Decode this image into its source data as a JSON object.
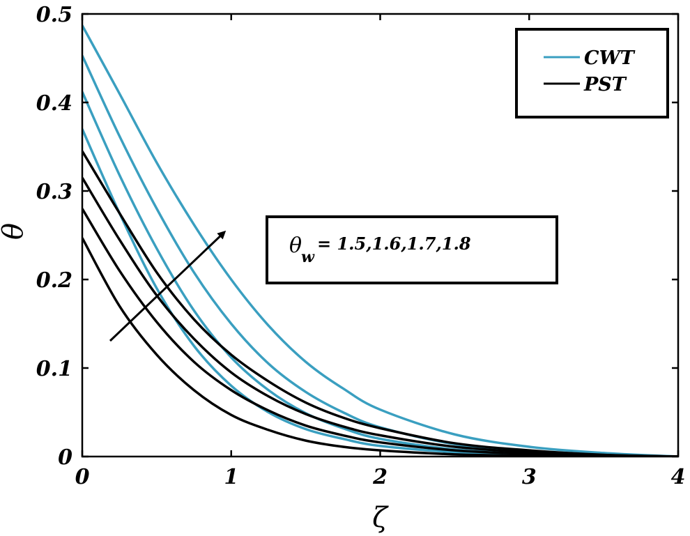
{
  "chart_data": {
    "type": "line",
    "xlabel": "ζ",
    "ylabel": "θ",
    "xlim": [
      0,
      4
    ],
    "ylim": [
      0,
      0.5
    ],
    "xticks": [
      0,
      1,
      2,
      3,
      4
    ],
    "yticks": [
      0,
      0.1,
      0.2,
      0.3,
      0.4,
      0.5
    ],
    "xtick_labels": [
      "0",
      "1",
      "2",
      "3",
      "4"
    ],
    "ytick_labels": [
      "0",
      "0.1",
      "0.2",
      "0.3",
      "0.4",
      "0.5"
    ],
    "grid": false,
    "legend_position": "top-right",
    "legend": [
      {
        "label": "CWT",
        "color": "#3a9fc0"
      },
      {
        "label": "PST",
        "color": "#000000"
      }
    ],
    "annotation": {
      "symbol": "θ",
      "subscript": "w",
      "text": "= 1.5,1.6,1.7,1.8"
    },
    "series": [
      {
        "group": "CWT",
        "color": "#3a9fc0",
        "x": [
          0,
          0.25,
          0.5,
          0.75,
          1,
          1.25,
          1.5,
          1.75,
          2,
          2.5,
          3,
          3.5,
          4
        ],
        "y": [
          0.37,
          0.275,
          0.19,
          0.125,
          0.08,
          0.05,
          0.031,
          0.02,
          0.012,
          0.005,
          0.002,
          0.0005,
          0
        ]
      },
      {
        "group": "CWT",
        "color": "#3a9fc0",
        "x": [
          0,
          0.25,
          0.5,
          0.75,
          1,
          1.25,
          1.5,
          1.75,
          2,
          2.5,
          3,
          3.5,
          4
        ],
        "y": [
          0.412,
          0.318,
          0.235,
          0.165,
          0.112,
          0.075,
          0.049,
          0.032,
          0.02,
          0.008,
          0.0035,
          0.001,
          0
        ]
      },
      {
        "group": "CWT",
        "color": "#3a9fc0",
        "x": [
          0,
          0.25,
          0.5,
          0.75,
          1,
          1.25,
          1.5,
          1.75,
          2,
          2.5,
          3,
          3.5,
          4
        ],
        "y": [
          0.453,
          0.362,
          0.28,
          0.208,
          0.15,
          0.105,
          0.073,
          0.05,
          0.033,
          0.014,
          0.006,
          0.002,
          0
        ]
      },
      {
        "group": "CWT",
        "color": "#3a9fc0",
        "x": [
          0,
          0.25,
          0.5,
          0.75,
          1,
          1.25,
          1.5,
          1.75,
          2,
          2.5,
          3,
          3.5,
          4
        ],
        "y": [
          0.487,
          0.41,
          0.332,
          0.262,
          0.2,
          0.148,
          0.107,
          0.077,
          0.053,
          0.025,
          0.011,
          0.004,
          0
        ]
      },
      {
        "group": "PST",
        "color": "#000000",
        "x": [
          0,
          0.25,
          0.5,
          0.75,
          1,
          1.25,
          1.5,
          1.75,
          2,
          2.5,
          3,
          3.5,
          4
        ],
        "y": [
          0.247,
          0.17,
          0.115,
          0.075,
          0.047,
          0.03,
          0.018,
          0.011,
          0.007,
          0.0025,
          0.001,
          0.0003,
          0
        ]
      },
      {
        "group": "PST",
        "color": "#000000",
        "x": [
          0,
          0.25,
          0.5,
          0.75,
          1,
          1.25,
          1.5,
          1.75,
          2,
          2.5,
          3,
          3.5,
          4
        ],
        "y": [
          0.28,
          0.21,
          0.152,
          0.107,
          0.075,
          0.052,
          0.035,
          0.024,
          0.016,
          0.007,
          0.003,
          0.001,
          0
        ]
      },
      {
        "group": "PST",
        "color": "#000000",
        "x": [
          0,
          0.25,
          0.5,
          0.75,
          1,
          1.25,
          1.5,
          1.75,
          2,
          2.5,
          3,
          3.5,
          4
        ],
        "y": [
          0.315,
          0.245,
          0.182,
          0.133,
          0.095,
          0.068,
          0.048,
          0.034,
          0.024,
          0.011,
          0.005,
          0.0015,
          0
        ]
      },
      {
        "group": "PST",
        "color": "#000000",
        "x": [
          0,
          0.25,
          0.5,
          0.75,
          1,
          1.25,
          1.5,
          1.75,
          2,
          2.5,
          3,
          3.5,
          4
        ],
        "y": [
          0.345,
          0.275,
          0.208,
          0.155,
          0.115,
          0.085,
          0.061,
          0.044,
          0.032,
          0.015,
          0.007,
          0.002,
          0
        ]
      }
    ]
  }
}
